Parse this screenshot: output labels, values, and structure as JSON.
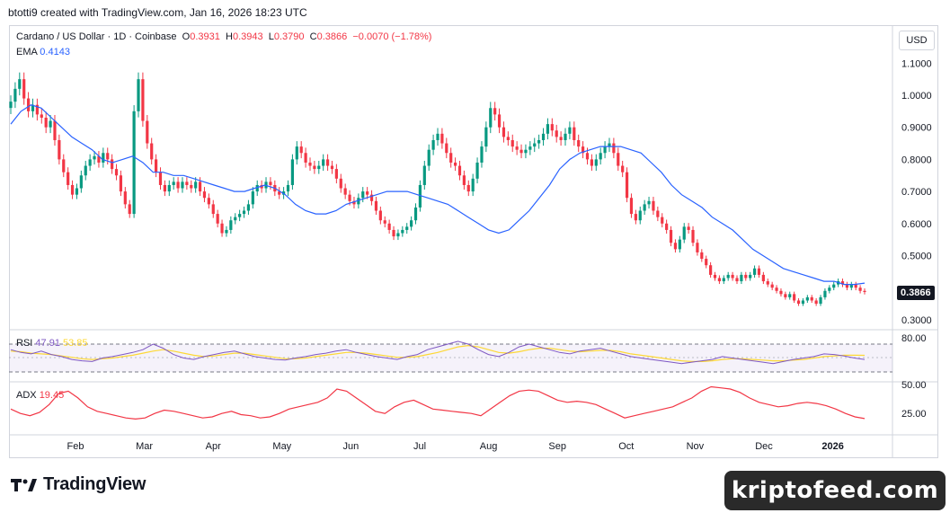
{
  "header": {
    "caption": "btotti9 created with TradingView.com, Jan 16, 2026 18:23 UTC"
  },
  "legend": {
    "symbol": "Cardano / US Dollar · 1D · Coinbase",
    "o_label": "O",
    "o": "0.3931",
    "h_label": "H",
    "h": "0.3943",
    "l_label": "L",
    "l": "0.3790",
    "c_label": "C",
    "c": "0.3866",
    "change": "−0.0070 (−1.78%)",
    "ema_label": "EMA",
    "ema": "0.4143"
  },
  "currency_button": "USD",
  "last_price_tag": "0.3866",
  "rsi": {
    "label": "RSI",
    "value": "47.91",
    "ma_value": "53.85",
    "axis_label": "80.00"
  },
  "adx": {
    "label": "ADX",
    "value": "19.45",
    "axis_labels": [
      "50.00",
      "25.00"
    ]
  },
  "brand": {
    "logo_text": "TradingView"
  },
  "watermark": "kriptofeed.com",
  "colors": {
    "up": "#089981",
    "down": "#f23645",
    "ema": "#2962ff",
    "rsi": "#7e57c2",
    "rsi_ma": "#fdd835",
    "adx": "#f23645"
  },
  "chart_data": {
    "type": "candlestick",
    "symbol": "Cardano / US Dollar",
    "interval": "1D",
    "exchange": "Coinbase",
    "y_axis_ticks": [
      "1.1000",
      "1.0000",
      "0.9000",
      "0.8000",
      "0.7000",
      "0.6000",
      "0.5000",
      "0.3000"
    ],
    "ylim": [
      0.3,
      1.15
    ],
    "x_axis_ticks": [
      "Feb",
      "Mar",
      "Apr",
      "May",
      "Jun",
      "Jul",
      "Aug",
      "Sep",
      "Oct",
      "Nov",
      "Dec",
      "2026"
    ],
    "close_approx": [
      0.98,
      1.02,
      1.05,
      0.99,
      0.95,
      0.97,
      0.94,
      0.93,
      0.9,
      0.92,
      0.86,
      0.8,
      0.76,
      0.72,
      0.69,
      0.71,
      0.75,
      0.78,
      0.8,
      0.81,
      0.79,
      0.82,
      0.8,
      0.77,
      0.75,
      0.7,
      0.66,
      0.63,
      0.95,
      1.05,
      0.92,
      0.85,
      0.8,
      0.76,
      0.72,
      0.7,
      0.72,
      0.73,
      0.71,
      0.73,
      0.72,
      0.71,
      0.73,
      0.7,
      0.68,
      0.66,
      0.63,
      0.6,
      0.57,
      0.58,
      0.61,
      0.62,
      0.63,
      0.64,
      0.66,
      0.7,
      0.72,
      0.71,
      0.73,
      0.72,
      0.7,
      0.69,
      0.7,
      0.72,
      0.8,
      0.84,
      0.82,
      0.79,
      0.78,
      0.77,
      0.78,
      0.8,
      0.78,
      0.77,
      0.74,
      0.71,
      0.69,
      0.67,
      0.66,
      0.68,
      0.7,
      0.69,
      0.67,
      0.64,
      0.61,
      0.6,
      0.58,
      0.56,
      0.57,
      0.58,
      0.59,
      0.61,
      0.65,
      0.72,
      0.78,
      0.83,
      0.86,
      0.88,
      0.85,
      0.82,
      0.79,
      0.78,
      0.75,
      0.72,
      0.7,
      0.74,
      0.79,
      0.84,
      0.9,
      0.96,
      0.94,
      0.9,
      0.87,
      0.86,
      0.84,
      0.83,
      0.82,
      0.83,
      0.84,
      0.85,
      0.86,
      0.88,
      0.91,
      0.89,
      0.87,
      0.86,
      0.88,
      0.9,
      0.86,
      0.84,
      0.82,
      0.8,
      0.78,
      0.8,
      0.82,
      0.84,
      0.85,
      0.82,
      0.78,
      0.76,
      0.68,
      0.63,
      0.61,
      0.64,
      0.66,
      0.67,
      0.64,
      0.62,
      0.6,
      0.58,
      0.54,
      0.52,
      0.55,
      0.59,
      0.58,
      0.54,
      0.51,
      0.49,
      0.47,
      0.44,
      0.43,
      0.42,
      0.43,
      0.44,
      0.43,
      0.42,
      0.44,
      0.43,
      0.44,
      0.46,
      0.44,
      0.42,
      0.41,
      0.4,
      0.39,
      0.38,
      0.37,
      0.38,
      0.36,
      0.35,
      0.36,
      0.37,
      0.36,
      0.35,
      0.37,
      0.39,
      0.4,
      0.41,
      0.42,
      0.41,
      0.4,
      0.41,
      0.4,
      0.39,
      0.3866
    ],
    "ema_approx": [
      0.91,
      0.95,
      0.97,
      0.96,
      0.93,
      0.9,
      0.87,
      0.85,
      0.83,
      0.8,
      0.79,
      0.8,
      0.81,
      0.79,
      0.76,
      0.76,
      0.75,
      0.75,
      0.74,
      0.73,
      0.72,
      0.71,
      0.7,
      0.7,
      0.71,
      0.72,
      0.71,
      0.69,
      0.66,
      0.64,
      0.63,
      0.63,
      0.64,
      0.66,
      0.67,
      0.68,
      0.69,
      0.7,
      0.7,
      0.7,
      0.69,
      0.68,
      0.67,
      0.66,
      0.64,
      0.62,
      0.6,
      0.58,
      0.57,
      0.58,
      0.61,
      0.64,
      0.68,
      0.72,
      0.77,
      0.8,
      0.82,
      0.83,
      0.84,
      0.84,
      0.84,
      0.83,
      0.82,
      0.79,
      0.76,
      0.72,
      0.69,
      0.67,
      0.65,
      0.62,
      0.6,
      0.58,
      0.55,
      0.52,
      0.5,
      0.48,
      0.46,
      0.45,
      0.44,
      0.43,
      0.42,
      0.42,
      0.41,
      0.41,
      0.4143
    ],
    "rsi_approx": [
      62,
      58,
      56,
      60,
      55,
      52,
      48,
      46,
      45,
      50,
      52,
      55,
      58,
      62,
      70,
      64,
      55,
      50,
      48,
      52,
      55,
      58,
      60,
      56,
      52,
      50,
      48,
      47,
      50,
      52,
      55,
      57,
      60,
      62,
      58,
      55,
      52,
      50,
      48,
      52,
      55,
      62,
      66,
      70,
      74,
      70,
      62,
      55,
      52,
      58,
      66,
      70,
      66,
      62,
      58,
      56,
      60,
      62,
      64,
      60,
      56,
      52,
      50,
      48,
      46,
      44,
      42,
      44,
      46,
      48,
      52,
      50,
      48,
      46,
      44,
      42,
      45,
      48,
      50,
      52,
      56,
      55,
      53,
      50,
      47.91
    ],
    "rsi_ma_approx": [
      60,
      59,
      57,
      56,
      55,
      53,
      51,
      49,
      48,
      49,
      50,
      52,
      54,
      57,
      60,
      62,
      60,
      57,
      54,
      52,
      53,
      55,
      57,
      57,
      55,
      53,
      51,
      49,
      49,
      50,
      52,
      54,
      56,
      58,
      58,
      57,
      55,
      53,
      51,
      51,
      52,
      55,
      58,
      62,
      66,
      68,
      66,
      62,
      58,
      57,
      59,
      62,
      64,
      64,
      62,
      60,
      59,
      60,
      61,
      61,
      59,
      56,
      54,
      52,
      50,
      48,
      46,
      45,
      45,
      46,
      48,
      49,
      49,
      48,
      47,
      46,
      46,
      47,
      48,
      50,
      52,
      53,
      54,
      54,
      53.85
    ],
    "adx_approx": [
      28,
      24,
      22,
      25,
      32,
      42,
      44,
      38,
      30,
      26,
      24,
      22,
      20,
      19,
      20,
      24,
      27,
      26,
      24,
      22,
      20,
      21,
      24,
      26,
      23,
      22,
      20,
      21,
      24,
      28,
      30,
      32,
      34,
      38,
      46,
      44,
      38,
      32,
      26,
      24,
      30,
      34,
      36,
      32,
      28,
      27,
      26,
      25,
      24,
      22,
      28,
      34,
      40,
      44,
      45,
      44,
      40,
      36,
      34,
      35,
      34,
      32,
      28,
      24,
      20,
      22,
      24,
      26,
      28,
      30,
      34,
      38,
      44,
      48,
      47,
      46,
      43,
      38,
      34,
      32,
      30,
      31,
      33,
      34,
      33,
      31,
      28,
      24,
      21,
      19.45
    ]
  }
}
